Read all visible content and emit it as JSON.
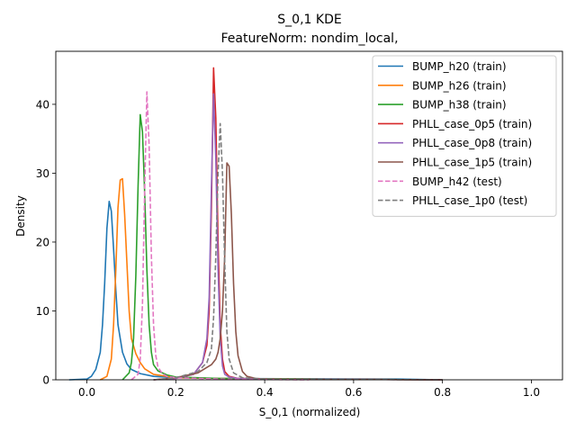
{
  "chart_data": {
    "type": "line",
    "title": "S_0,1 KDE",
    "subtitle": "FeatureNorm: nondim_local,",
    "xlabel": "S_0,1 (normalized)",
    "ylabel": "Density",
    "xlim": [
      -0.07,
      1.07
    ],
    "ylim": [
      0,
      47.7
    ],
    "xticks": [
      "0.0",
      "0.2",
      "0.4",
      "0.6",
      "0.8",
      "1.0"
    ],
    "yticks": [
      "0",
      "10",
      "20",
      "30",
      "40"
    ],
    "xtick_values": [
      0.0,
      0.2,
      0.4,
      0.6,
      0.8,
      1.0
    ],
    "ytick_values": [
      0,
      10,
      20,
      30,
      40
    ],
    "legend_position": "upper right",
    "grid": false,
    "series": [
      {
        "name": "BUMP_h20 (train)",
        "color": "#1f77b4",
        "dash": "solid",
        "x": [
          -0.04,
          0.0,
          0.01,
          0.02,
          0.03,
          0.035,
          0.04,
          0.045,
          0.05,
          0.055,
          0.06,
          0.065,
          0.07,
          0.08,
          0.09,
          0.1,
          0.12,
          0.15,
          0.2,
          0.3,
          0.5,
          0.7,
          0.8
        ],
        "y": [
          0,
          0.1,
          0.5,
          1.5,
          4,
          8,
          14,
          22,
          25.9,
          24.5,
          19,
          13,
          8,
          4,
          2.3,
          1.5,
          0.9,
          0.5,
          0.3,
          0.2,
          0.15,
          0.1,
          0
        ]
      },
      {
        "name": "BUMP_h26 (train)",
        "color": "#ff7f0e",
        "dash": "solid",
        "x": [
          0.03,
          0.045,
          0.055,
          0.06,
          0.065,
          0.07,
          0.075,
          0.08,
          0.085,
          0.09,
          0.095,
          0.1,
          0.11,
          0.12,
          0.13,
          0.15,
          0.2,
          0.3,
          0.5,
          0.8
        ],
        "y": [
          0,
          0.5,
          3,
          8,
          16,
          25,
          29,
          29.2,
          24,
          17,
          10,
          6,
          3.8,
          2.5,
          1.6,
          0.8,
          0.3,
          0.2,
          0.1,
          0
        ]
      },
      {
        "name": "BUMP_h38 (train)",
        "color": "#2ca02c",
        "dash": "solid",
        "x": [
          0.08,
          0.095,
          0.1,
          0.105,
          0.11,
          0.115,
          0.12,
          0.125,
          0.13,
          0.135,
          0.14,
          0.145,
          0.15,
          0.16,
          0.18,
          0.2,
          0.3,
          0.5,
          0.8
        ],
        "y": [
          0,
          1,
          2.5,
          6,
          15,
          28,
          38.5,
          36,
          27,
          16,
          8,
          4,
          2.2,
          1.3,
          0.7,
          0.4,
          0.2,
          0.1,
          0
        ]
      },
      {
        "name": "PHLL_case_0p5 (train)",
        "color": "#d62728",
        "dash": "solid",
        "x": [
          0.15,
          0.2,
          0.24,
          0.26,
          0.27,
          0.275,
          0.28,
          0.285,
          0.29,
          0.295,
          0.3,
          0.305,
          0.31,
          0.32,
          0.34,
          0.4,
          0.6,
          0.8
        ],
        "y": [
          0,
          0.2,
          0.8,
          2.5,
          5,
          10,
          25,
          45.3,
          38,
          20,
          8,
          3,
          1.2,
          0.5,
          0.2,
          0.1,
          0.05,
          0
        ]
      },
      {
        "name": "PHLL_case_0p8 (train)",
        "color": "#9467bd",
        "dash": "solid",
        "x": [
          0.15,
          0.2,
          0.24,
          0.26,
          0.27,
          0.275,
          0.28,
          0.285,
          0.29,
          0.295,
          0.3,
          0.305,
          0.31,
          0.32,
          0.34,
          0.4,
          0.6,
          0.8
        ],
        "y": [
          0,
          0.2,
          0.8,
          2.5,
          6,
          12,
          28,
          41.5,
          32,
          16,
          6,
          2,
          0.8,
          0.4,
          0.2,
          0.1,
          0.05,
          0
        ]
      },
      {
        "name": "PHLL_case_1p5 (train)",
        "color": "#8c564b",
        "dash": "solid",
        "x": [
          0.15,
          0.2,
          0.25,
          0.27,
          0.28,
          0.29,
          0.295,
          0.3,
          0.305,
          0.31,
          0.315,
          0.32,
          0.325,
          0.33,
          0.335,
          0.34,
          0.35,
          0.36,
          0.38,
          0.4,
          0.6,
          0.8
        ],
        "y": [
          0,
          0.3,
          1.0,
          1.8,
          2.2,
          3,
          4,
          6,
          10,
          18,
          31.5,
          31,
          24,
          14,
          7,
          3.5,
          1.2,
          0.5,
          0.2,
          0.1,
          0.05,
          0
        ]
      },
      {
        "name": "BUMP_h42 (test)",
        "color": "#e377c2",
        "dash": "dashed",
        "x": [
          0.1,
          0.115,
          0.12,
          0.125,
          0.13,
          0.135,
          0.14,
          0.145,
          0.15,
          0.155,
          0.16,
          0.17,
          0.18,
          0.2,
          0.3,
          0.5
        ],
        "y": [
          0,
          0.8,
          3,
          11,
          28,
          41.8,
          34,
          18,
          8,
          3.5,
          1.8,
          0.9,
          0.5,
          0.3,
          0.1,
          0
        ]
      },
      {
        "name": "PHLL_case_1p0 (test)",
        "color": "#7f7f7f",
        "dash": "dashed",
        "x": [
          0.15,
          0.2,
          0.25,
          0.27,
          0.28,
          0.285,
          0.29,
          0.295,
          0.3,
          0.305,
          0.31,
          0.315,
          0.32,
          0.33,
          0.35,
          0.4,
          0.6,
          0.8
        ],
        "y": [
          0,
          0.3,
          1.2,
          2.5,
          4.5,
          9,
          18,
          30,
          37.2,
          30,
          17,
          7,
          3,
          1,
          0.3,
          0.1,
          0.05,
          0
        ]
      }
    ]
  }
}
